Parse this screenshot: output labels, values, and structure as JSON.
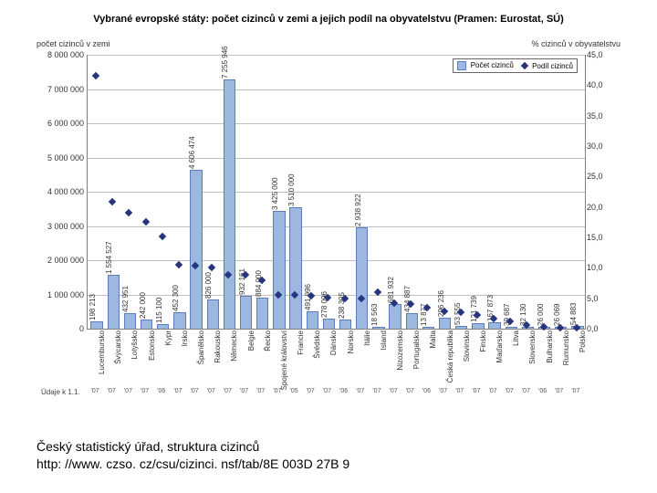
{
  "chart": {
    "type": "bar+scatter",
    "title": "Vybrané evropské státy: počet cizinců v zemi a jejich podíl na obyvatelstvu (Pramen: Eurostat, SÚ)",
    "title_fontsize": 11,
    "yaxis_left_label": "počet cizinců v zemi",
    "yaxis_right_label": "% cizinců v obyvatelstvu",
    "background_color": "#ffffff",
    "grid_color": "#c0c0c0",
    "axis_color": "#808080",
    "bar_color": "#9cb7e0",
    "bar_border_color": "#5b7db8",
    "marker_color": "#27357f",
    "label_fontsize": 8,
    "tick_fontsize": 9,
    "y_left": {
      "min": 0,
      "max": 8000000,
      "step": 1000000,
      "labels": [
        "0",
        "1 000 000",
        "2 000 000",
        "3 000 000",
        "4 000 000",
        "5 000 000",
        "6 000 000",
        "7 000 000",
        "8 000 000"
      ]
    },
    "y_right": {
      "min": 0,
      "max": 45,
      "step": 5,
      "labels": [
        "0,0",
        "5,0",
        "10,0",
        "15,0",
        "20,0",
        "25,0",
        "30,0",
        "35,0",
        "40,0",
        "45,0"
      ]
    },
    "legend": {
      "bar_label": "Počet cizinců",
      "marker_label": "Podíl cizinců"
    },
    "year_row_label": "Údaje k 1.1.",
    "data": [
      {
        "country": "Lucembursko",
        "year": "'07",
        "count": 198213,
        "count_label": "198 213",
        "pct": 41.6
      },
      {
        "country": "Švýcarsko",
        "year": "'07",
        "count": 1554527,
        "count_label": "1 554 527",
        "pct": 20.8
      },
      {
        "country": "Lotyšsko",
        "year": "'07",
        "count": 432951,
        "count_label": "432 951",
        "pct": 19.0
      },
      {
        "country": "Estonsko",
        "year": "'07",
        "count": 242000,
        "count_label": "242 000",
        "pct": 17.6
      },
      {
        "country": "Kypr",
        "year": "'06",
        "count": 115100,
        "count_label": "115 100",
        "pct": 15.2
      },
      {
        "country": "Irsko",
        "year": "'07",
        "count": 452300,
        "count_label": "452 300",
        "pct": 10.5
      },
      {
        "country": "Španělsko",
        "year": "'07",
        "count": 4606474,
        "count_label": "4 606 474",
        "pct": 10.4
      },
      {
        "country": "Rakousko",
        "year": "'07",
        "count": 826000,
        "count_label": "826 000",
        "pct": 10.0
      },
      {
        "country": "Německo",
        "year": "'07",
        "count": 7255946,
        "count_label": "7 255 946",
        "pct": 8.8
      },
      {
        "country": "Belgie",
        "year": "'07",
        "count": 932161,
        "count_label": "932 161",
        "pct": 8.8
      },
      {
        "country": "Řecko",
        "year": "'07",
        "count": 884000,
        "count_label": "884 000",
        "pct": 7.9
      },
      {
        "country": "Spojené království",
        "year": "'07",
        "count": 3425000,
        "count_label": "3 425 000",
        "pct": 5.6
      },
      {
        "country": "Francie",
        "year": "'05",
        "count": 3510000,
        "count_label": "3 510 000",
        "pct": 5.6
      },
      {
        "country": "Švédsko",
        "year": "'07",
        "count": 491996,
        "count_label": "491 996",
        "pct": 5.4
      },
      {
        "country": "Dánsko",
        "year": "'07",
        "count": 278096,
        "count_label": "278 096",
        "pct": 5.1
      },
      {
        "country": "Norsko",
        "year": "'06",
        "count": 238305,
        "count_label": "238 305",
        "pct": 5.0
      },
      {
        "country": "Itálie",
        "year": "'07",
        "count": 2938922,
        "count_label": "2 938 922",
        "pct": 5.0
      },
      {
        "country": "Island",
        "year": "'07",
        "count": 18563,
        "count_label": "18 563",
        "pct": 6.0
      },
      {
        "country": "Nizozemsko",
        "year": "'07",
        "count": 681932,
        "count_label": "681 932",
        "pct": 4.2
      },
      {
        "country": "Portugalsko",
        "year": "'07",
        "count": 434887,
        "count_label": "434 887",
        "pct": 4.1
      },
      {
        "country": "Malta",
        "year": "'06",
        "count": 13877,
        "count_label": "13 877",
        "pct": 3.4
      },
      {
        "country": "Česká republika",
        "year": "'07",
        "count": 296236,
        "count_label": "296 236",
        "pct": 2.9
      },
      {
        "country": "Slovinsko",
        "year": "'07",
        "count": 53555,
        "count_label": "53 555",
        "pct": 2.7
      },
      {
        "country": "Finsko",
        "year": "'07",
        "count": 121739,
        "count_label": "121 739",
        "pct": 2.3
      },
      {
        "country": "Maďarsko",
        "year": "'07",
        "count": 167873,
        "count_label": "167 873",
        "pct": 1.7
      },
      {
        "country": "Litva",
        "year": "'07",
        "count": 39687,
        "count_label": "39 687",
        "pct": 1.2
      },
      {
        "country": "Slovensko",
        "year": "'07",
        "count": 32130,
        "count_label": "32 130",
        "pct": 0.6
      },
      {
        "country": "Bulharsko",
        "year": "'06",
        "count": 26000,
        "count_label": "26 000",
        "pct": 0.3
      },
      {
        "country": "Rumunsko",
        "year": "'07",
        "count": 26069,
        "count_label": "26 069",
        "pct": 0.1
      },
      {
        "country": "Polsko",
        "year": "'07",
        "count": 54883,
        "count_label": "54 883",
        "pct": 0.1
      }
    ]
  },
  "caption": {
    "line1": "Český statistický úřad, struktura cizinců",
    "line2": "http: //www. czso. cz/csu/cizinci. nsf/tab/8E 003D 27B 9"
  }
}
